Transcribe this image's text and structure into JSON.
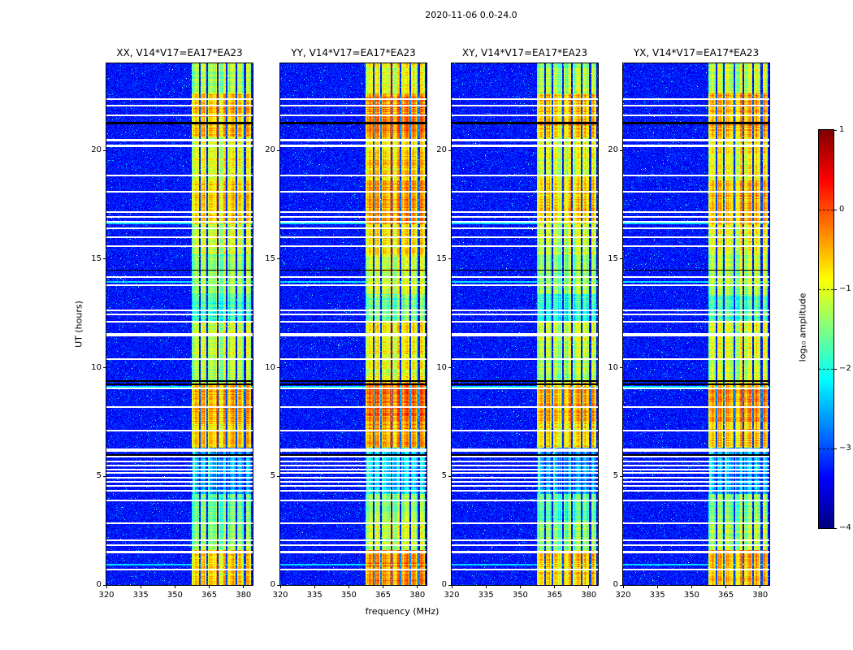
{
  "chart_data": {
    "type": "heatmap",
    "title": "2020-11-06 0.0-24.0",
    "xlabel": "frequency (MHz)",
    "ylabel": "UT (hours)",
    "x_range": [
      320,
      384
    ],
    "x_ticks": [
      320,
      335,
      350,
      365,
      380
    ],
    "y_range": [
      0,
      24
    ],
    "y_ticks": [
      0,
      5,
      10,
      15,
      20
    ],
    "colormap": "jet",
    "colorbar": {
      "label": "log₁₀ amplitude",
      "range": [
        -4,
        1
      ],
      "ticks": [
        1,
        0,
        -1,
        -2,
        -3,
        -4
      ]
    },
    "panels": [
      {
        "label": "XX, V14*V17=EA17*EA23",
        "band_gain": 0.0
      },
      {
        "label": "YY, V14*V17=EA17*EA23",
        "band_gain": 0.3
      },
      {
        "label": "XY, V14*V17=EA17*EA23",
        "band_gain": -0.05
      },
      {
        "label": "YX, V14*V17=EA17*EA23",
        "band_gain": 0.1
      }
    ],
    "background_level": -3.3,
    "rfi_band": {
      "f_start": 357.5,
      "f_end": 383.2,
      "notch_freqs": [
        360.8,
        364.0,
        368.6,
        372.6,
        376.8,
        380.6
      ],
      "persistent_lines": [
        358.2,
        364.9
      ]
    },
    "band_segments": [
      [
        0,
        1.6,
        -0.7
      ],
      [
        1.6,
        2.9,
        -1.5
      ],
      [
        2.9,
        4.2,
        -1.7
      ],
      [
        4.2,
        6.3,
        -2.7
      ],
      [
        6.3,
        7.5,
        -0.8
      ],
      [
        7.5,
        9.3,
        -0.55
      ],
      [
        9.3,
        10.6,
        -1.35
      ],
      [
        10.6,
        12.1,
        -1.2
      ],
      [
        12.1,
        13.4,
        -1.9
      ],
      [
        13.4,
        15.2,
        -1.45
      ],
      [
        15.2,
        16.6,
        -1.15
      ],
      [
        16.6,
        18.6,
        -0.75
      ],
      [
        18.6,
        20.6,
        -1.05
      ],
      [
        20.6,
        22.6,
        -0.65
      ],
      [
        22.6,
        24,
        -1.35
      ]
    ],
    "flagged_rows_white": [
      [
        22.35,
        2
      ],
      [
        22.05,
        2
      ],
      [
        21.6,
        2
      ],
      [
        20.45,
        3
      ],
      [
        20.2,
        3
      ],
      [
        18.85,
        2
      ],
      [
        18.1,
        2
      ],
      [
        17.15,
        2
      ],
      [
        16.95,
        2
      ],
      [
        16.7,
        2
      ],
      [
        16.4,
        2
      ],
      [
        16,
        2
      ],
      [
        15.6,
        2
      ],
      [
        14.15,
        2
      ],
      [
        13.8,
        2
      ],
      [
        12.65,
        2
      ],
      [
        12.45,
        2
      ],
      [
        12.1,
        2
      ],
      [
        11.5,
        4
      ],
      [
        10.4,
        2
      ],
      [
        9.05,
        2
      ],
      [
        8.2,
        2
      ],
      [
        7.1,
        2
      ],
      [
        6.2,
        4
      ],
      [
        5.9,
        2
      ],
      [
        5.7,
        2
      ],
      [
        5.5,
        2
      ],
      [
        5.3,
        2
      ],
      [
        5.15,
        2
      ],
      [
        4.95,
        2
      ],
      [
        4.75,
        2
      ],
      [
        4.55,
        2
      ],
      [
        4.35,
        2
      ],
      [
        3.9,
        2
      ],
      [
        2.85,
        2
      ],
      [
        2.05,
        2
      ],
      [
        1.85,
        2
      ],
      [
        1.5,
        3
      ],
      [
        0.7,
        2
      ]
    ],
    "flagged_rows_black": [
      [
        21.25,
        3
      ],
      [
        14.5,
        1
      ],
      [
        9.4,
        2
      ],
      [
        9.25,
        2
      ],
      [
        6,
        2
      ]
    ],
    "bright_rows": [
      16.62,
      13.95,
      9.12,
      0.93
    ]
  }
}
